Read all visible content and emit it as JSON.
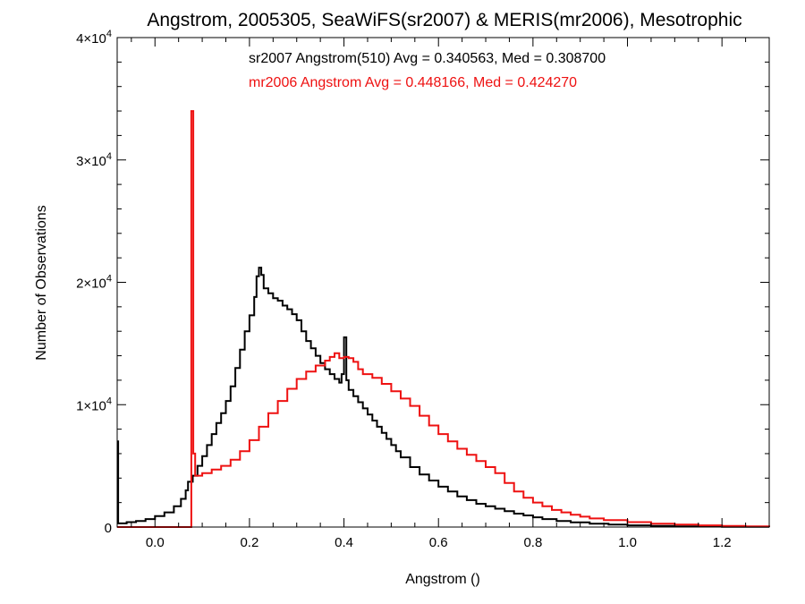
{
  "chart_data": {
    "type": "line",
    "title": "Angstrom, 2005305, SeaWiFS(sr2007) & MERIS(mr2006), Mesotrophic",
    "xlabel": "Angstrom ()",
    "ylabel": "Number of Observations",
    "xlim": [
      -0.08,
      1.3
    ],
    "ylim": [
      0,
      40000
    ],
    "x_ticks": [
      {
        "value": 0.0,
        "label": "0.0"
      },
      {
        "value": 0.2,
        "label": "0.2"
      },
      {
        "value": 0.4,
        "label": "0.4"
      },
      {
        "value": 0.6,
        "label": "0.6"
      },
      {
        "value": 0.8,
        "label": "0.8"
      },
      {
        "value": 1.0,
        "label": "1.0"
      },
      {
        "value": 1.2,
        "label": "1.2"
      }
    ],
    "y_ticks": [
      {
        "value": 0,
        "mantissa": "0",
        "exponent": ""
      },
      {
        "value": 10000,
        "mantissa": "1×10",
        "exponent": "4"
      },
      {
        "value": 20000,
        "mantissa": "2×10",
        "exponent": "4"
      },
      {
        "value": 30000,
        "mantissa": "3×10",
        "exponent": "4"
      },
      {
        "value": 40000,
        "mantissa": "4×10",
        "exponent": "4"
      }
    ],
    "grid": false,
    "annotations": [
      {
        "text": "sr2007 Angstrom(510) Avg = 0.340563, Med = 0.308700",
        "color": "#000000"
      },
      {
        "text": "mr2006 Angstrom Avg = 0.448166, Med = 0.424270",
        "color": "#ee1111"
      }
    ],
    "series": [
      {
        "color": "#000000",
        "points": [
          [
            -0.08,
            7000
          ],
          [
            -0.078,
            300
          ],
          [
            -0.06,
            400
          ],
          [
            -0.04,
            500
          ],
          [
            -0.02,
            650
          ],
          [
            0.0,
            900
          ],
          [
            0.02,
            1200
          ],
          [
            0.04,
            1700
          ],
          [
            0.055,
            2300
          ],
          [
            0.065,
            3000
          ],
          [
            0.07,
            3700
          ],
          [
            0.08,
            4200
          ],
          [
            0.09,
            5000
          ],
          [
            0.1,
            5800
          ],
          [
            0.11,
            6700
          ],
          [
            0.12,
            7600
          ],
          [
            0.13,
            8500
          ],
          [
            0.14,
            9300
          ],
          [
            0.15,
            10300
          ],
          [
            0.16,
            11500
          ],
          [
            0.17,
            13000
          ],
          [
            0.18,
            14500
          ],
          [
            0.19,
            16000
          ],
          [
            0.2,
            17300
          ],
          [
            0.21,
            18800
          ],
          [
            0.215,
            20500
          ],
          [
            0.22,
            21200
          ],
          [
            0.225,
            20600
          ],
          [
            0.23,
            19500
          ],
          [
            0.24,
            19100
          ],
          [
            0.25,
            18700
          ],
          [
            0.26,
            18500
          ],
          [
            0.27,
            18100
          ],
          [
            0.28,
            17800
          ],
          [
            0.29,
            17400
          ],
          [
            0.3,
            16900
          ],
          [
            0.31,
            16000
          ],
          [
            0.32,
            15200
          ],
          [
            0.33,
            14600
          ],
          [
            0.34,
            14000
          ],
          [
            0.35,
            13400
          ],
          [
            0.36,
            12900
          ],
          [
            0.37,
            12500
          ],
          [
            0.38,
            12100
          ],
          [
            0.39,
            11800
          ],
          [
            0.395,
            12500
          ],
          [
            0.4,
            15500
          ],
          [
            0.405,
            12000
          ],
          [
            0.41,
            11200
          ],
          [
            0.42,
            10700
          ],
          [
            0.43,
            10200
          ],
          [
            0.44,
            9700
          ],
          [
            0.45,
            9200
          ],
          [
            0.46,
            8700
          ],
          [
            0.47,
            8200
          ],
          [
            0.48,
            7700
          ],
          [
            0.49,
            7200
          ],
          [
            0.5,
            6700
          ],
          [
            0.51,
            6200
          ],
          [
            0.52,
            5700
          ],
          [
            0.54,
            4900
          ],
          [
            0.56,
            4300
          ],
          [
            0.58,
            3800
          ],
          [
            0.6,
            3300
          ],
          [
            0.62,
            2900
          ],
          [
            0.64,
            2500
          ],
          [
            0.66,
            2200
          ],
          [
            0.68,
            1900
          ],
          [
            0.7,
            1700
          ],
          [
            0.72,
            1500
          ],
          [
            0.74,
            1300
          ],
          [
            0.76,
            1100
          ],
          [
            0.78,
            950
          ],
          [
            0.8,
            800
          ],
          [
            0.82,
            650
          ],
          [
            0.85,
            500
          ],
          [
            0.88,
            380
          ],
          [
            0.92,
            280
          ],
          [
            0.96,
            200
          ],
          [
            1.0,
            140
          ],
          [
            1.05,
            90
          ],
          [
            1.1,
            60
          ],
          [
            1.15,
            40
          ],
          [
            1.2,
            25
          ],
          [
            1.25,
            15
          ],
          [
            1.3,
            10
          ]
        ]
      },
      {
        "color": "#ee1111",
        "points": [
          [
            -0.08,
            0
          ],
          [
            0.076,
            0
          ],
          [
            0.077,
            34000
          ],
          [
            0.081,
            6000
          ],
          [
            0.085,
            4200
          ],
          [
            0.1,
            4400
          ],
          [
            0.12,
            4700
          ],
          [
            0.14,
            5000
          ],
          [
            0.16,
            5500
          ],
          [
            0.18,
            6200
          ],
          [
            0.2,
            7100
          ],
          [
            0.22,
            8200
          ],
          [
            0.24,
            9300
          ],
          [
            0.26,
            10300
          ],
          [
            0.28,
            11300
          ],
          [
            0.3,
            12100
          ],
          [
            0.32,
            12700
          ],
          [
            0.34,
            13200
          ],
          [
            0.36,
            13600
          ],
          [
            0.37,
            13900
          ],
          [
            0.38,
            14200
          ],
          [
            0.39,
            13800
          ],
          [
            0.4,
            13900
          ],
          [
            0.41,
            13800
          ],
          [
            0.42,
            13500
          ],
          [
            0.43,
            12900
          ],
          [
            0.44,
            12500
          ],
          [
            0.46,
            12200
          ],
          [
            0.48,
            11700
          ],
          [
            0.5,
            11100
          ],
          [
            0.52,
            10500
          ],
          [
            0.54,
            9900
          ],
          [
            0.56,
            9100
          ],
          [
            0.58,
            8300
          ],
          [
            0.6,
            7600
          ],
          [
            0.62,
            7000
          ],
          [
            0.64,
            6400
          ],
          [
            0.66,
            5900
          ],
          [
            0.68,
            5400
          ],
          [
            0.7,
            4900
          ],
          [
            0.72,
            4400
          ],
          [
            0.74,
            3600
          ],
          [
            0.76,
            2900
          ],
          [
            0.78,
            2400
          ],
          [
            0.8,
            2000
          ],
          [
            0.82,
            1700
          ],
          [
            0.84,
            1400
          ],
          [
            0.86,
            1200
          ],
          [
            0.88,
            1000
          ],
          [
            0.9,
            850
          ],
          [
            0.92,
            700
          ],
          [
            0.95,
            560
          ],
          [
            1.0,
            400
          ],
          [
            1.05,
            280
          ],
          [
            1.1,
            200
          ],
          [
            1.15,
            140
          ],
          [
            1.2,
            90
          ],
          [
            1.25,
            60
          ],
          [
            1.3,
            40
          ]
        ]
      }
    ]
  }
}
